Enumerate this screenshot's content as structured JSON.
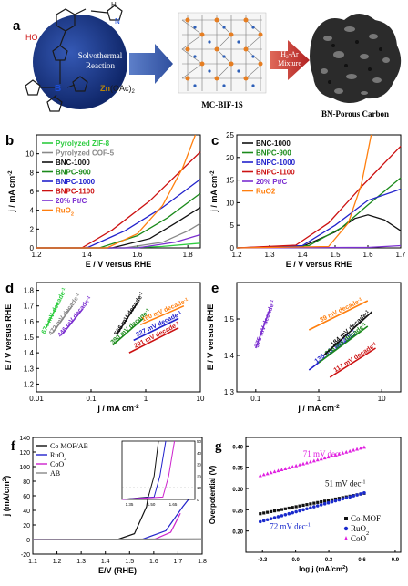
{
  "schematic": {
    "panel_label": "a",
    "precursor_labels": {
      "oh": "HO",
      "h": "H",
      "n": "N",
      "boron": "B",
      "reaction": "Solvothermal\nReaction",
      "zn": "Zn",
      "zn_suffix": "(OAc)",
      "zn_sub": "2"
    },
    "framework_label": "MC-BIF-1S",
    "arrow_label_1": "H",
    "arrow_label_sub": "2",
    "arrow_label_2": "-Ar",
    "arrow_label_3": "Mixture",
    "product_label": "BN-Porous Carbon",
    "colors": {
      "sphere": "#1f3a8a",
      "arrow": "#3b5aa8",
      "arrow2": "#c0392b",
      "zn": "#b8860b",
      "boron": "#1d4ed8"
    }
  },
  "chart_data": [
    {
      "panel": "b",
      "type": "line",
      "xlabel": "E / V versus RHE",
      "ylabel": "j / mA cm",
      "ylabel_sup": "-2",
      "xlim": [
        1.2,
        1.85
      ],
      "ylim": [
        0,
        12
      ],
      "xticks": [
        1.2,
        1.4,
        1.6,
        1.8
      ],
      "xticklabels": [
        "1.2",
        "1.4",
        "1.6",
        "1.8"
      ],
      "yticks": [
        0,
        2,
        4,
        6,
        8,
        10
      ],
      "legend_position": "top-left",
      "series": [
        {
          "name": "Pyrolyzed ZIF-8",
          "color": "#2ecc40",
          "x": [
            1.2,
            1.55,
            1.7,
            1.85
          ],
          "y": [
            0,
            0,
            0.15,
            0.5
          ]
        },
        {
          "name": "Pyrolyzed COF-5",
          "color": "#888888",
          "x": [
            1.2,
            1.55,
            1.7,
            1.8,
            1.85
          ],
          "y": [
            0,
            0,
            0.6,
            1.8,
            2.6
          ]
        },
        {
          "name": "BNC-1000",
          "color": "#111111",
          "x": [
            1.2,
            1.5,
            1.65,
            1.75,
            1.85
          ],
          "y": [
            0,
            0,
            1.0,
            2.6,
            4.3
          ]
        },
        {
          "name": "BNPC-900",
          "color": "#1a8a1a",
          "x": [
            1.2,
            1.45,
            1.6,
            1.72,
            1.85
          ],
          "y": [
            0,
            0,
            1.3,
            3.2,
            5.8
          ]
        },
        {
          "name": "BNPC-1000",
          "color": "#2222cc",
          "x": [
            1.2,
            1.4,
            1.55,
            1.7,
            1.85
          ],
          "y": [
            0,
            0,
            1.8,
            4.3,
            7.3
          ]
        },
        {
          "name": "BNPC-1100",
          "color": "#cc1111",
          "x": [
            1.2,
            1.38,
            1.5,
            1.65,
            1.85
          ],
          "y": [
            0,
            0,
            1.9,
            5.0,
            10.2
          ]
        },
        {
          "name": "20% Pt/C",
          "color": "#7b2fd0",
          "x": [
            1.2,
            1.6,
            1.75,
            1.85
          ],
          "y": [
            0,
            0,
            0.6,
            1.4
          ]
        },
        {
          "name": "RuO",
          "name_sub": "2",
          "color": "#ff7f0e",
          "x": [
            1.2,
            1.48,
            1.6,
            1.7,
            1.78,
            1.83
          ],
          "y": [
            0,
            0,
            1.5,
            4.5,
            8.5,
            12
          ]
        }
      ]
    },
    {
      "panel": "c",
      "type": "line",
      "xlabel": "E / V versus RHE",
      "ylabel": "j / mA cm",
      "ylabel_sup": "-2",
      "xlim": [
        1.2,
        1.7
      ],
      "ylim": [
        0,
        25
      ],
      "xticks": [
        1.2,
        1.3,
        1.4,
        1.5,
        1.6,
        1.7
      ],
      "xticklabels": [
        "1.2",
        "1.3",
        "1.4",
        "1.5",
        "1.6",
        "1.7"
      ],
      "yticks": [
        0,
        5,
        10,
        15,
        20,
        25
      ],
      "legend_position": "top-left",
      "series": [
        {
          "name": "BNC-1000",
          "color": "#111111",
          "x": [
            1.2,
            1.4,
            1.5,
            1.56,
            1.6,
            1.65,
            1.7
          ],
          "y": [
            0,
            0.3,
            3.5,
            6.5,
            7.3,
            6.2,
            3.8
          ]
        },
        {
          "name": "BNPC-900",
          "color": "#1a8a1a",
          "x": [
            1.2,
            1.42,
            1.52,
            1.6,
            1.7
          ],
          "y": [
            0,
            0.5,
            4.5,
            9.5,
            15.5
          ]
        },
        {
          "name": "BNPC-1000",
          "color": "#2222cc",
          "x": [
            1.2,
            1.4,
            1.5,
            1.6,
            1.7
          ],
          "y": [
            0,
            0.5,
            5.0,
            10.5,
            13.0
          ]
        },
        {
          "name": "BNPC-1100",
          "color": "#cc1111",
          "x": [
            1.2,
            1.38,
            1.48,
            1.58,
            1.7
          ],
          "y": [
            0,
            0.6,
            5.5,
            13.5,
            22.5
          ]
        },
        {
          "name": "20% Pt/C",
          "color": "#7b2fd0",
          "x": [
            1.2,
            1.6,
            1.7
          ],
          "y": [
            0,
            0.1,
            0.5
          ]
        },
        {
          "name": "RuO2",
          "color": "#ff7f0e",
          "x": [
            1.2,
            1.48,
            1.54,
            1.58,
            1.61
          ],
          "y": [
            0,
            0.3,
            5.5,
            14,
            25
          ]
        }
      ]
    },
    {
      "panel": "d",
      "type": "line",
      "xlabel": "j / mA cm",
      "xlabel_sup": "-2",
      "ylabel": "E / V versus RHE",
      "xscale": "log",
      "xlim": [
        0.01,
        10
      ],
      "ylim": [
        1.15,
        1.85
      ],
      "xticks": [
        0.01,
        0.1,
        1,
        10
      ],
      "xticklabels": [
        "0.01",
        "0.1",
        "1",
        "10"
      ],
      "yticks": [
        1.2,
        1.3,
        1.4,
        1.5,
        1.6,
        1.7,
        1.8
      ],
      "series": [
        {
          "name": "674 mV decade",
          "name_sup": "-1",
          "color": "#2ecc40",
          "x": [
            0.015,
            0.025
          ],
          "y": [
            1.56,
            1.72
          ]
        },
        {
          "name": "472 mV decade",
          "name_sup": "-1",
          "color": "#888888",
          "x": [
            0.02,
            0.045
          ],
          "y": [
            1.53,
            1.7
          ]
        },
        {
          "name": "446 mV decade",
          "name_sup": "-1",
          "color": "#7b2fd0",
          "x": [
            0.03,
            0.07
          ],
          "y": [
            1.52,
            1.68
          ]
        },
        {
          "name": "566 mV decade",
          "name_sup": "-1",
          "color": "#111111",
          "x": [
            0.3,
            0.7
          ],
          "y": [
            1.52,
            1.72
          ]
        },
        {
          "name": "390 mV decade",
          "name_sup": "-1",
          "color": "#1a8a1a",
          "x": [
            0.25,
            0.9
          ],
          "y": [
            1.45,
            1.62
          ]
        },
        {
          "name": "160 mV decade",
          "name_sup": "-1",
          "color": "#ff7f0e",
          "x": [
            0.8,
            5.0
          ],
          "y": [
            1.58,
            1.7
          ]
        },
        {
          "name": "227 mV decade",
          "name_sup": "-1",
          "color": "#2222cc",
          "x": [
            0.6,
            4.0
          ],
          "y": [
            1.48,
            1.62
          ]
        },
        {
          "name": "201 mV decade",
          "name_sup": "-1",
          "color": "#cc1111",
          "x": [
            0.5,
            4.0
          ],
          "y": [
            1.4,
            1.56
          ]
        }
      ]
    },
    {
      "panel": "e",
      "type": "line",
      "xlabel": "j / mA cm",
      "xlabel_sup": "-2",
      "ylabel": "E / V versus RHE",
      "xscale": "log",
      "xlim": [
        0.05,
        20
      ],
      "ylim": [
        1.3,
        1.6
      ],
      "xticks": [
        0.1,
        1,
        10
      ],
      "xticklabels": [
        "0.1",
        "1",
        "10"
      ],
      "yticks": [
        1.3,
        1.4,
        1.5
      ],
      "series": [
        {
          "name": "375 mV decade",
          "name_sup": "-1",
          "color": "#7b2fd0",
          "x": [
            0.1,
            0.17
          ],
          "y": [
            1.42,
            1.53
          ]
        },
        {
          "name": "89 mV decade",
          "name_sup": "-1",
          "color": "#ff7f0e",
          "x": [
            0.7,
            6.0
          ],
          "y": [
            1.47,
            1.55
          ]
        },
        {
          "name": "135 mV decade",
          "name_sup": "-1",
          "color": "#2222cc",
          "x": [
            0.7,
            4.0
          ],
          "y": [
            1.36,
            1.46
          ]
        },
        {
          "name": "208 mV decade",
          "name_sup": "-1",
          "color": "#1a8a1a",
          "x": [
            1.0,
            6.0
          ],
          "y": [
            1.38,
            1.48
          ]
        },
        {
          "name": "184 mV decade",
          "name_sup": "-1",
          "color": "#111111",
          "x": [
            1.2,
            7.0
          ],
          "y": [
            1.4,
            1.52
          ]
        },
        {
          "name": "117 mV decade",
          "name_sup": "-1",
          "color": "#cc1111",
          "x": [
            1.5,
            8.0
          ],
          "y": [
            1.34,
            1.42
          ]
        }
      ]
    },
    {
      "panel": "f",
      "type": "line",
      "xlabel": "E/V (RHE)",
      "ylabel": "j (mA/cm",
      "ylabel_sup": "2",
      "ylabel_tail": ")",
      "xlim": [
        1.1,
        1.8
      ],
      "ylim": [
        -20,
        140
      ],
      "xticks": [
        1.1,
        1.2,
        1.3,
        1.4,
        1.5,
        1.6,
        1.7,
        1.8
      ],
      "xticklabels": [
        "1.1",
        "1.2",
        "1.3",
        "1.4",
        "1.5",
        "1.6",
        "1.7",
        "1.8"
      ],
      "yticks": [
        -20,
        0,
        20,
        40,
        60,
        80,
        100,
        120,
        140
      ],
      "legend_position": "top-left",
      "series": [
        {
          "name": "Co MOF/AB",
          "color": "#111111",
          "x": [
            1.1,
            1.45,
            1.52,
            1.57,
            1.61
          ],
          "y": [
            0,
            0,
            8,
            45,
            125
          ]
        },
        {
          "name": "RuO",
          "name_sub": "2",
          "color": "#2222cc",
          "x": [
            1.1,
            1.55,
            1.65,
            1.72,
            1.76
          ],
          "y": [
            0,
            0,
            12,
            45,
            62
          ]
        },
        {
          "name": "CoO",
          "color": "#cc22cc",
          "x": [
            1.1,
            1.6,
            1.67,
            1.71
          ],
          "y": [
            0,
            0,
            10,
            36
          ]
        },
        {
          "name": "AB",
          "color": "#888888",
          "x": [
            1.1,
            1.8
          ],
          "y": [
            0,
            1
          ]
        }
      ],
      "inset": {
        "xlim": [
          1.3,
          1.8
        ],
        "ylim": [
          0,
          50
        ],
        "xticks": [
          1.35,
          1.5,
          1.65
        ],
        "xticklabels": [
          "1.35",
          "1.50",
          "1.65"
        ],
        "yticks": [
          0,
          10,
          20,
          30,
          40,
          50
        ],
        "ref_y": 10,
        "series": [
          {
            "color": "#111111",
            "x": [
              1.3,
              1.48,
              1.52,
              1.55
            ],
            "y": [
              0,
              2,
              20,
              50
            ]
          },
          {
            "color": "#2222cc",
            "x": [
              1.3,
              1.52,
              1.56,
              1.6
            ],
            "y": [
              0,
              2,
              20,
              50
            ]
          },
          {
            "color": "#cc22cc",
            "x": [
              1.3,
              1.58,
              1.62,
              1.66
            ],
            "y": [
              0,
              2,
              20,
              50
            ]
          }
        ]
      }
    },
    {
      "panel": "g",
      "type": "scatter",
      "xlabel": "log j (mA/cm",
      "xlabel_sup": "2",
      "xlabel_tail": ")",
      "ylabel": "Overpotential (V)",
      "xlim": [
        -0.45,
        0.95
      ],
      "ylim": [
        0.15,
        0.42
      ],
      "xticks": [
        -0.3,
        0.0,
        0.3,
        0.6,
        0.9
      ],
      "xticklabels": [
        "-0.3",
        "0.0",
        "0.3",
        "0.6",
        "0.9"
      ],
      "yticks": [
        0.2,
        0.25,
        0.3,
        0.35,
        0.4
      ],
      "yticklabels": [
        "0.20",
        "0.25",
        "0.30",
        "0.35",
        "0.40"
      ],
      "legend_position": "bottom-right",
      "series": [
        {
          "name": "Co-MOF",
          "color": "#111111",
          "marker": "square",
          "x_range": [
            -0.32,
            0.62
          ],
          "slope": 0.051,
          "intercept": 0.257
        },
        {
          "name": "RuO",
          "name_sub": "2",
          "color": "#1a2acc",
          "marker": "circle",
          "x_range": [
            -0.32,
            0.62
          ],
          "slope": 0.072,
          "intercept": 0.245
        },
        {
          "name": "CoO",
          "color": "#e020e0",
          "marker": "triangle",
          "x_range": [
            -0.32,
            0.62
          ],
          "slope": 0.071,
          "intercept": 0.353
        }
      ],
      "annotations": [
        {
          "text": "71 mV dec",
          "sup": "-1",
          "color": "#e020e0",
          "x": 0.25,
          "y": 0.375
        },
        {
          "text": "51 mV dec",
          "sup": "-1",
          "color": "#111111",
          "x": 0.45,
          "y": 0.305
        },
        {
          "text": "72 mV dec",
          "sup": "-1",
          "color": "#1a2acc",
          "x": -0.05,
          "y": 0.205
        }
      ]
    }
  ]
}
